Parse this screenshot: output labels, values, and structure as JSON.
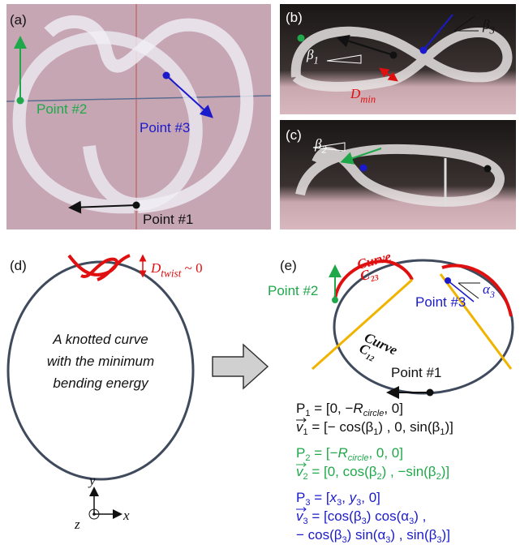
{
  "panels": {
    "a": {
      "label": "(a)",
      "point2": "Point #2",
      "point3": "Point #3",
      "point1": "Point #1"
    },
    "b": {
      "label": "(b)",
      "beta3": [
        {
          "text": "β"
        },
        {
          "text": "3",
          "sub": true
        }
      ],
      "beta1": [
        {
          "text": "β"
        },
        {
          "text": "1",
          "sub": true
        }
      ],
      "dmin": [
        {
          "text": "D"
        },
        {
          "text": "min",
          "sub": true
        }
      ]
    },
    "c": {
      "label": "(c)",
      "beta2": [
        {
          "text": "β"
        },
        {
          "text": "2",
          "sub": true
        }
      ]
    },
    "d": {
      "label": "(d)",
      "dtwist": [
        {
          "text": "D"
        },
        {
          "text": "twist",
          "sub": true
        },
        {
          "text": " ~ 0",
          "upright": true
        }
      ],
      "caption": [
        "A knotted curve",
        "with the minimum",
        "bending energy"
      ],
      "axis_y": "y",
      "axis_x": "x",
      "axis_z": "z"
    },
    "e": {
      "label": "(e)",
      "curve23": [
        {
          "text": "Curve"
        },
        {
          "text": "C",
          "line": true
        },
        {
          "text": "23",
          "sub": true
        }
      ],
      "curve12": [
        {
          "text": "Curve"
        },
        {
          "text": "C",
          "line": true
        },
        {
          "text": "12",
          "sub": true
        }
      ],
      "point2": "Point #2",
      "point3": "Point #3",
      "point1": "Point #1",
      "alpha3": [
        {
          "text": "α"
        },
        {
          "text": "3",
          "sub": true
        }
      ]
    }
  },
  "equations": [
    {
      "color": "#111111",
      "lines": [
        [
          {
            "text": "P"
          },
          {
            "text": "1",
            "sub": true
          },
          {
            "text": " = [0, −"
          },
          {
            "text": "R",
            "italic": true
          },
          {
            "text": "circle",
            "sub": true,
            "italic": true
          },
          {
            "text": ", 0]"
          }
        ],
        [
          {
            "text": "v",
            "vec": true
          },
          {
            "text": "1",
            "sub": true
          },
          {
            "text": " = [− cos(β"
          },
          {
            "text": "1",
            "sub": true
          },
          {
            "text": ") , 0, sin(β"
          },
          {
            "text": "1",
            "sub": true
          },
          {
            "text": ")]"
          }
        ]
      ]
    },
    {
      "color": "#1fa84a",
      "lines": [
        [
          {
            "text": "P"
          },
          {
            "text": "2",
            "sub": true
          },
          {
            "text": " = [−"
          },
          {
            "text": "R",
            "italic": true
          },
          {
            "text": "circle",
            "sub": true,
            "italic": true
          },
          {
            "text": ", 0, 0]"
          }
        ],
        [
          {
            "text": "v",
            "vec": true
          },
          {
            "text": "2",
            "sub": true
          },
          {
            "text": " = [0, cos(β"
          },
          {
            "text": "2",
            "sub": true
          },
          {
            "text": ") , −sin(β"
          },
          {
            "text": "2",
            "sub": true
          },
          {
            "text": ")]"
          }
        ]
      ]
    },
    {
      "color": "#1a1acc",
      "lines": [
        [
          {
            "text": "P"
          },
          {
            "text": "3",
            "sub": true
          },
          {
            "text": " = ["
          },
          {
            "text": "x",
            "italic": true
          },
          {
            "text": "3",
            "sub": true
          },
          {
            "text": ", "
          },
          {
            "text": "y",
            "italic": true
          },
          {
            "text": "3",
            "sub": true
          },
          {
            "text": ", 0]"
          }
        ],
        [
          {
            "text": "v",
            "vec": true
          },
          {
            "text": "3",
            "sub": true
          },
          {
            "text": " = [cos(β"
          },
          {
            "text": "3",
            "sub": true
          },
          {
            "text": ") cos(α"
          },
          {
            "text": "3",
            "sub": true
          },
          {
            "text": ") ,"
          }
        ],
        [
          {
            "text": "     − cos(β"
          },
          {
            "text": "3",
            "sub": true
          },
          {
            "text": ") sin(α"
          },
          {
            "text": "3",
            "sub": true
          },
          {
            "text": ") , sin(β"
          },
          {
            "text": "3",
            "sub": true
          },
          {
            "text": ")]"
          }
        ]
      ]
    }
  ]
}
